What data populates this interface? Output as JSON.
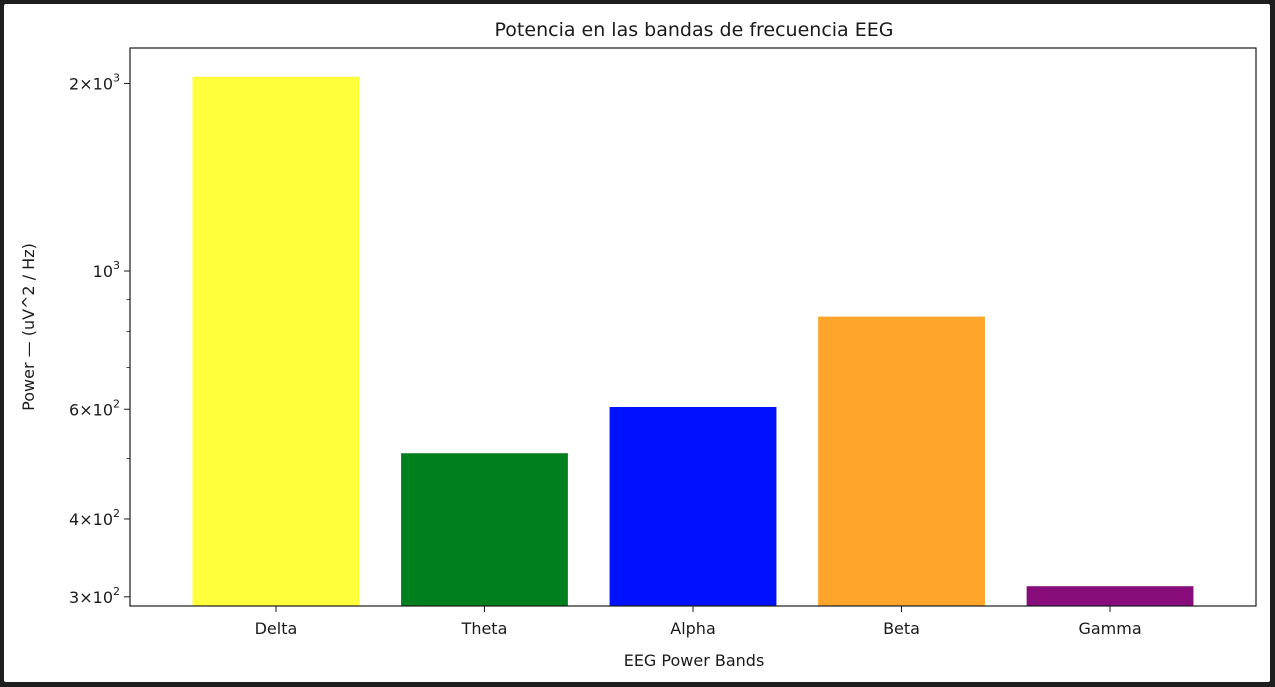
{
  "chart_data": {
    "type": "bar",
    "title": "Potencia en las bandas de frecuencia EEG",
    "xlabel": "EEG Power Bands",
    "ylabel": "Power — (uV^2 / Hz)",
    "yscale": "log",
    "ylim": [
      290,
      2280
    ],
    "categories": [
      "Delta",
      "Theta",
      "Alpha",
      "Beta",
      "Gamma"
    ],
    "values": [
      2050,
      510,
      605,
      845,
      312
    ],
    "colors": [
      "#ffff3c",
      "#007f1f",
      "#0011ff",
      "#ffa52c",
      "#870c7c"
    ],
    "yticks_major": [
      {
        "value": 300,
        "mantissa": "3",
        "exponent": "2"
      },
      {
        "value": 400,
        "mantissa": "4",
        "exponent": "2"
      },
      {
        "value": 600,
        "mantissa": "6",
        "exponent": "2"
      },
      {
        "value": 1000,
        "mantissa": "",
        "exponent": "3"
      },
      {
        "value": 2000,
        "mantissa": "2",
        "exponent": "3"
      }
    ],
    "yticks_minor": [
      500,
      700,
      800,
      900
    ],
    "grid": false,
    "legend": "none"
  }
}
